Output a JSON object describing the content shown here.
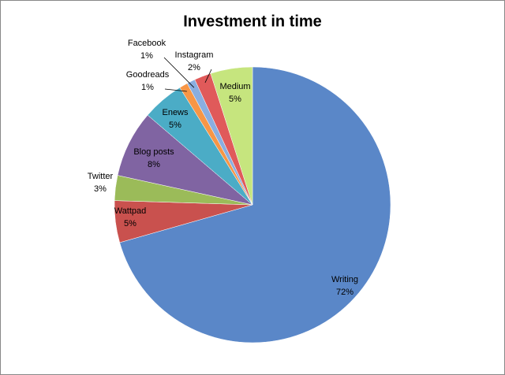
{
  "chart_data": {
    "type": "pie",
    "title": "Investment in time",
    "categories": [
      "Writing",
      "Wattpad",
      "Twitter",
      "Blog posts",
      "Enews",
      "Goodreads",
      "Facebook",
      "Instagram",
      "Medium"
    ],
    "values": [
      72,
      5,
      3,
      8,
      5,
      1,
      1,
      2,
      5
    ],
    "value_labels": [
      "72%",
      "5%",
      "3%",
      "8%",
      "5%",
      "1%",
      "1%",
      "2%",
      "5%"
    ],
    "colors": [
      "#5a87c8",
      "#c9514e",
      "#9bbb59",
      "#8064a2",
      "#4bacc6",
      "#f79646",
      "#8aaee0",
      "#e05a5a",
      "#c6e57e"
    ]
  }
}
